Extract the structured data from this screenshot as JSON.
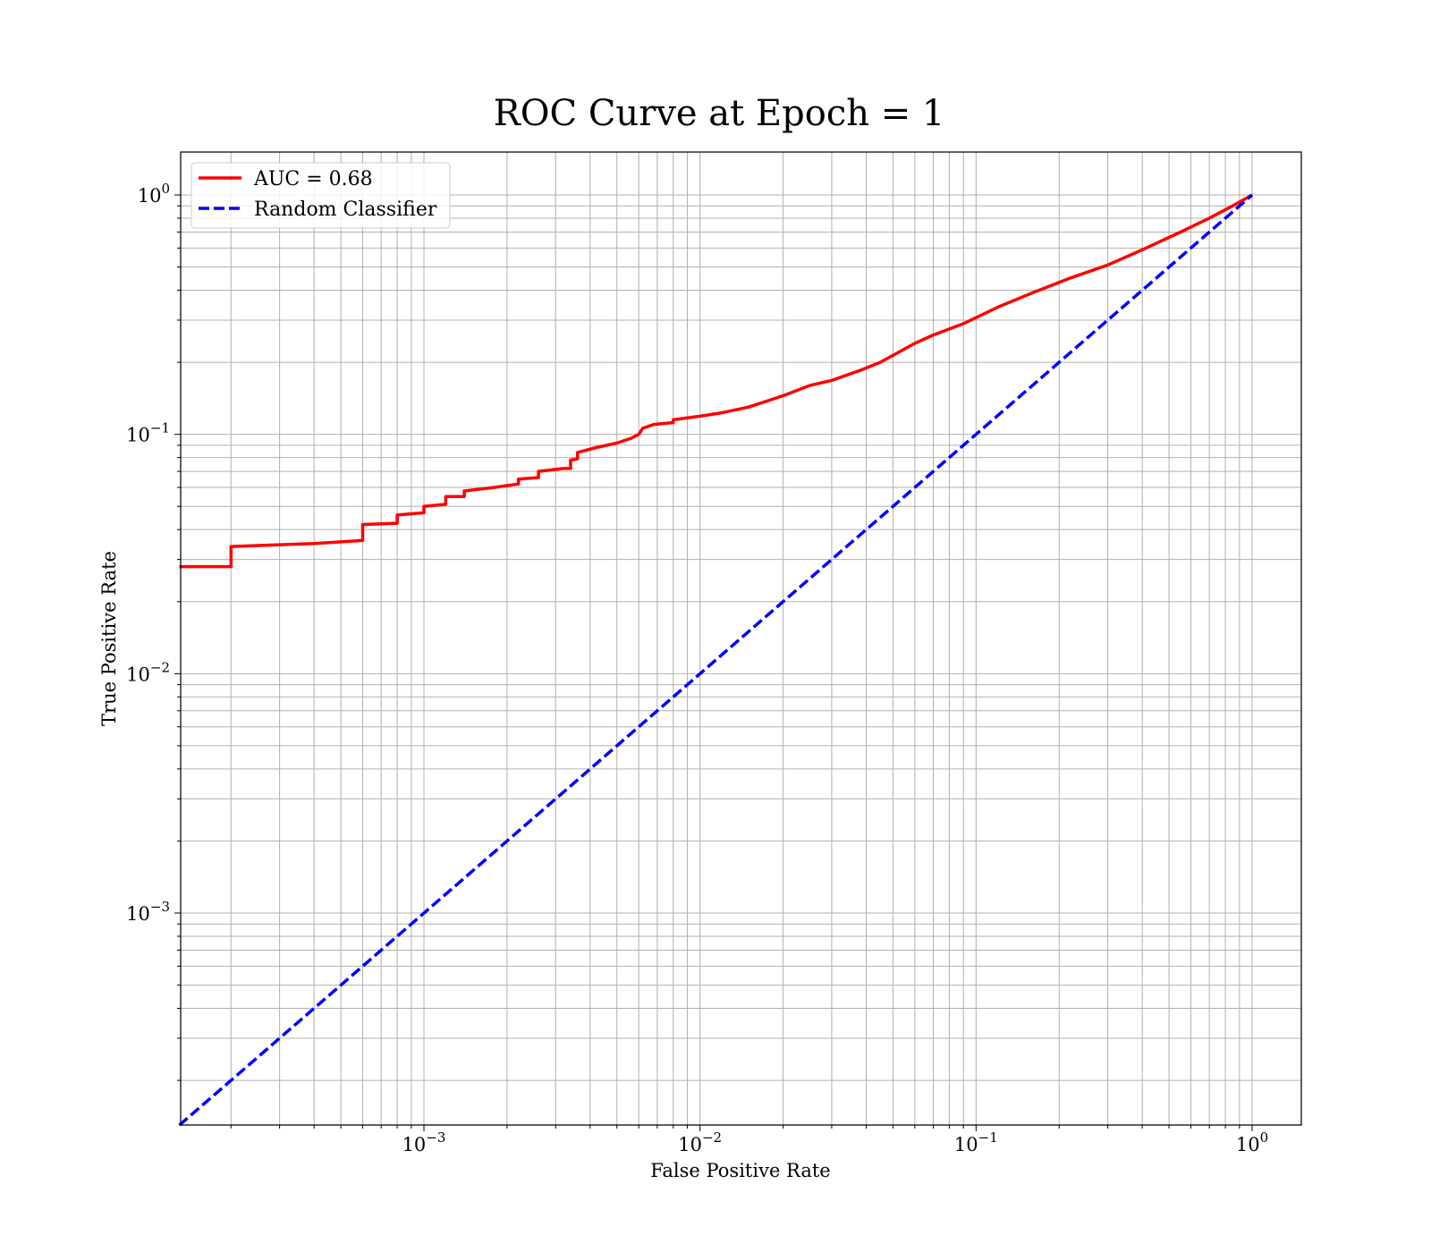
{
  "chart_data": {
    "type": "line",
    "title": "ROC Curve at Epoch = 1",
    "xlabel": "False Positive Rate",
    "ylabel": "True Positive Rate",
    "xscale": "log",
    "yscale": "log",
    "xlim": [
      0.00013,
      1.5
    ],
    "ylim": [
      0.00013,
      1.5
    ],
    "grid": "major and minor",
    "legend_position": "top-left",
    "x_ticks": [
      {
        "base": "10",
        "exp": "−3",
        "value": 0.001
      },
      {
        "base": "10",
        "exp": "−2",
        "value": 0.01
      },
      {
        "base": "10",
        "exp": "−1",
        "value": 0.1
      },
      {
        "base": "10",
        "exp": "0",
        "value": 1
      }
    ],
    "y_ticks": [
      {
        "base": "10",
        "exp": "−3",
        "value": 0.001
      },
      {
        "base": "10",
        "exp": "−2",
        "value": 0.01
      },
      {
        "base": "10",
        "exp": "−1",
        "value": 0.1
      },
      {
        "base": "10",
        "exp": "0",
        "value": 1
      }
    ],
    "series": [
      {
        "name": "AUC = 0.68",
        "color": "#ff0000",
        "style": "solid",
        "points": [
          [
            0.00013,
            0.028
          ],
          [
            0.0002,
            0.028
          ],
          [
            0.0002,
            0.034
          ],
          [
            0.0004,
            0.035
          ],
          [
            0.0006,
            0.036
          ],
          [
            0.0006,
            0.042
          ],
          [
            0.0008,
            0.0425
          ],
          [
            0.0008,
            0.046
          ],
          [
            0.001,
            0.047
          ],
          [
            0.001,
            0.05
          ],
          [
            0.0012,
            0.051
          ],
          [
            0.0012,
            0.055
          ],
          [
            0.0014,
            0.055
          ],
          [
            0.0014,
            0.058
          ],
          [
            0.0018,
            0.06
          ],
          [
            0.0022,
            0.062
          ],
          [
            0.0022,
            0.065
          ],
          [
            0.0026,
            0.066
          ],
          [
            0.0026,
            0.07
          ],
          [
            0.0032,
            0.072
          ],
          [
            0.0034,
            0.072
          ],
          [
            0.0034,
            0.078
          ],
          [
            0.0036,
            0.079
          ],
          [
            0.0036,
            0.084
          ],
          [
            0.0042,
            0.088
          ],
          [
            0.005,
            0.092
          ],
          [
            0.0056,
            0.096
          ],
          [
            0.006,
            0.1
          ],
          [
            0.0062,
            0.106
          ],
          [
            0.0068,
            0.11
          ],
          [
            0.008,
            0.112
          ],
          [
            0.008,
            0.115
          ],
          [
            0.01,
            0.119
          ],
          [
            0.012,
            0.123
          ],
          [
            0.015,
            0.13
          ],
          [
            0.02,
            0.145
          ],
          [
            0.025,
            0.16
          ],
          [
            0.03,
            0.168
          ],
          [
            0.038,
            0.185
          ],
          [
            0.045,
            0.2
          ],
          [
            0.06,
            0.24
          ],
          [
            0.07,
            0.26
          ],
          [
            0.09,
            0.29
          ],
          [
            0.12,
            0.34
          ],
          [
            0.16,
            0.39
          ],
          [
            0.22,
            0.45
          ],
          [
            0.3,
            0.51
          ],
          [
            0.4,
            0.59
          ],
          [
            0.55,
            0.7
          ],
          [
            0.7,
            0.8
          ],
          [
            0.85,
            0.9
          ],
          [
            1.0,
            1.0
          ]
        ]
      },
      {
        "name": "Random Classifier",
        "color": "#0000ff",
        "style": "dashed",
        "points": [
          [
            0.00013,
            0.00013
          ],
          [
            1.0,
            1.0
          ]
        ]
      }
    ]
  }
}
